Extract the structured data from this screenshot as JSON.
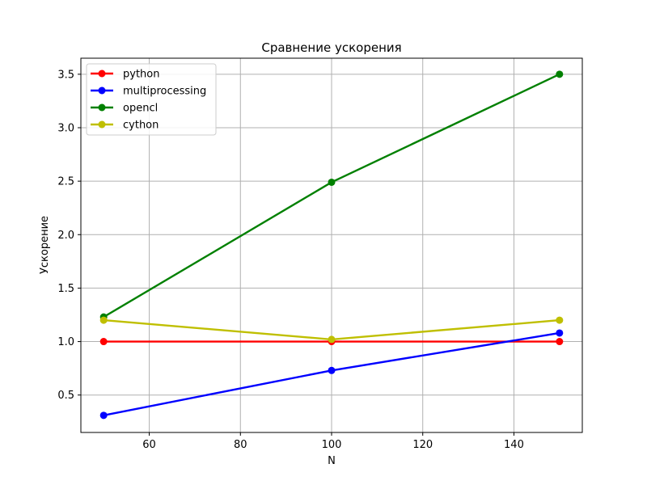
{
  "chart_data": {
    "type": "line",
    "title": "Сравнение ускорения",
    "xlabel": "N",
    "ylabel": "Ускорение",
    "x": [
      50,
      100,
      150
    ],
    "xlim": [
      45,
      155
    ],
    "ylim": [
      0.15,
      3.65
    ],
    "xticks": [
      60,
      80,
      100,
      120,
      140
    ],
    "yticks": [
      0.5,
      1.0,
      1.5,
      2.0,
      2.5,
      3.0,
      3.5
    ],
    "xtick_labels": [
      "60",
      "80",
      "100",
      "120",
      "140"
    ],
    "ytick_labels": [
      "0.5",
      "1.0",
      "1.5",
      "2.0",
      "2.5",
      "3.0",
      "3.5"
    ],
    "grid": true,
    "legend_position": "top-left",
    "series": [
      {
        "name": "python",
        "color": "#ff0000",
        "values": [
          1.0,
          1.0,
          1.0
        ]
      },
      {
        "name": "multiprocessing",
        "color": "#0000ff",
        "values": [
          0.31,
          0.73,
          1.08
        ]
      },
      {
        "name": "opencl",
        "color": "#008000",
        "values": [
          1.23,
          2.49,
          3.5
        ]
      },
      {
        "name": "cython",
        "color": "#bfbf00",
        "values": [
          1.2,
          1.02,
          1.2
        ]
      }
    ]
  }
}
